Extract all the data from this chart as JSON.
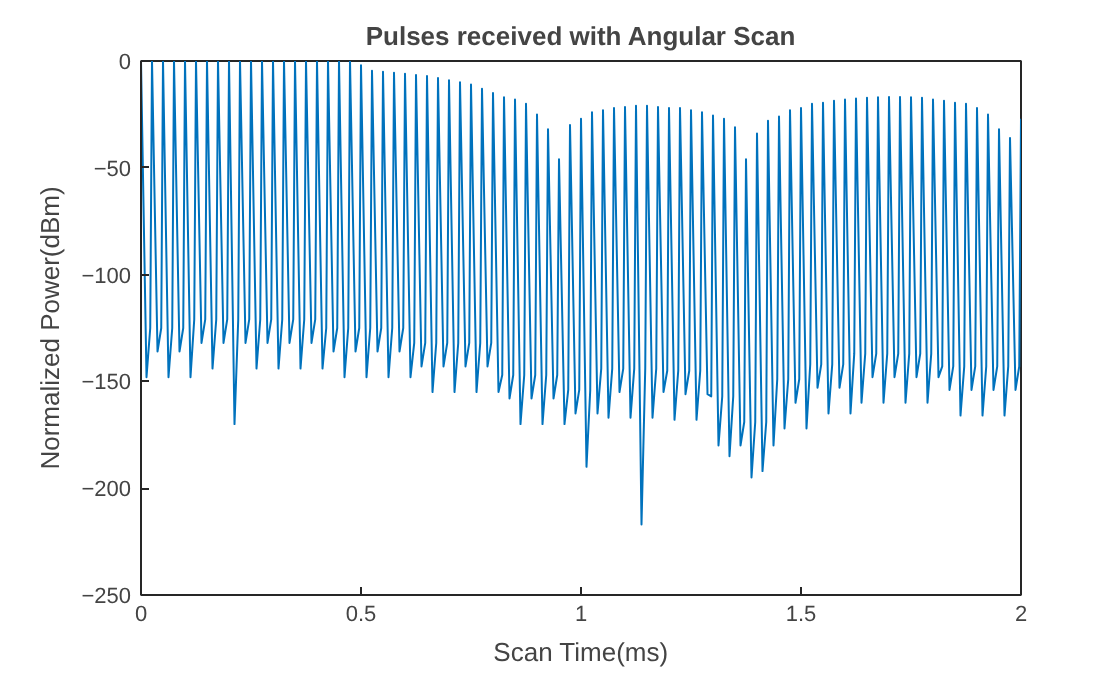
{
  "chart_data": {
    "type": "line",
    "title": "Pulses received with Angular Scan",
    "xlabel": "Scan Time(ms)",
    "ylabel": "Normalized Power(dBm)",
    "xlim": [
      0,
      2
    ],
    "ylim": [
      -250,
      0
    ],
    "xticks": [
      0,
      0.5,
      1,
      1.5,
      2
    ],
    "yticks": [
      -250,
      -200,
      -150,
      -100,
      -50,
      0
    ],
    "x": [
      0,
      0.0125,
      0.021,
      0.025,
      0.0375,
      0.046,
      0.05,
      0.0625,
      0.071,
      0.075,
      0.0875,
      0.096,
      0.1,
      0.1125,
      0.121,
      0.125,
      0.1375,
      0.146,
      0.15,
      0.1625,
      0.171,
      0.175,
      0.1875,
      0.196,
      0.2,
      0.2125,
      0.221,
      0.225,
      0.2375,
      0.246,
      0.25,
      0.2625,
      0.271,
      0.275,
      0.2875,
      0.296,
      0.3,
      0.3125,
      0.321,
      0.325,
      0.3375,
      0.346,
      0.35,
      0.3625,
      0.371,
      0.375,
      0.3875,
      0.396,
      0.4,
      0.4125,
      0.421,
      0.425,
      0.4375,
      0.446,
      0.45,
      0.4625,
      0.471,
      0.475,
      0.4875,
      0.496,
      0.5,
      0.5125,
      0.521,
      0.525,
      0.5375,
      0.546,
      0.55,
      0.5625,
      0.571,
      0.575,
      0.5875,
      0.596,
      0.6,
      0.6125,
      0.621,
      0.625,
      0.6375,
      0.646,
      0.65,
      0.6625,
      0.671,
      0.675,
      0.6875,
      0.696,
      0.7,
      0.7125,
      0.721,
      0.725,
      0.7375,
      0.746,
      0.75,
      0.7625,
      0.771,
      0.775,
      0.7875,
      0.796,
      0.8,
      0.8125,
      0.821,
      0.825,
      0.8375,
      0.846,
      0.85,
      0.8625,
      0.871,
      0.875,
      0.8875,
      0.896,
      0.9,
      0.9125,
      0.921,
      0.925,
      0.9375,
      0.946,
      0.95,
      0.9625,
      0.971,
      0.975,
      0.9875,
      0.996,
      1,
      1.0125,
      1.021,
      1.025,
      1.0375,
      1.046,
      1.05,
      1.0625,
      1.071,
      1.075,
      1.0875,
      1.096,
      1.1,
      1.1125,
      1.121,
      1.125,
      1.1375,
      1.146,
      1.15,
      1.1625,
      1.171,
      1.175,
      1.1875,
      1.196,
      1.2,
      1.2125,
      1.221,
      1.225,
      1.2375,
      1.246,
      1.25,
      1.2625,
      1.271,
      1.275,
      1.2875,
      1.296,
      1.3,
      1.3125,
      1.321,
      1.325,
      1.3375,
      1.346,
      1.35,
      1.3625,
      1.371,
      1.375,
      1.3875,
      1.396,
      1.4,
      1.4125,
      1.421,
      1.425,
      1.4375,
      1.446,
      1.45,
      1.4625,
      1.471,
      1.475,
      1.4875,
      1.496,
      1.5,
      1.5125,
      1.521,
      1.525,
      1.5375,
      1.546,
      1.55,
      1.5625,
      1.571,
      1.575,
      1.5875,
      1.596,
      1.6,
      1.6125,
      1.621,
      1.625,
      1.6375,
      1.646,
      1.65,
      1.6625,
      1.671,
      1.675,
      1.6875,
      1.696,
      1.7,
      1.7125,
      1.721,
      1.725,
      1.7375,
      1.746,
      1.75,
      1.7625,
      1.771,
      1.775,
      1.7875,
      1.796,
      1.8,
      1.8125,
      1.821,
      1.825,
      1.8375,
      1.846,
      1.85,
      1.8625,
      1.871,
      1.875,
      1.8875,
      1.896,
      1.9,
      1.9125,
      1.921,
      1.925,
      1.9375,
      1.946,
      1.95,
      1.9625,
      1.971,
      1.975,
      1.9875,
      1.996,
      2
    ],
    "series": [
      {
        "color": "#0072bd",
        "values": [
          0,
          -148,
          -125,
          0,
          -136,
          -125,
          0,
          -148,
          -125,
          0,
          -136,
          -125,
          0,
          -148,
          -121,
          0,
          -132,
          -121,
          0,
          -144,
          -121,
          0,
          -132,
          -121,
          0,
          -170,
          -121,
          0,
          -132,
          -121,
          0,
          -144,
          -121,
          0,
          -132,
          -121,
          0,
          -144,
          -121,
          0,
          -132,
          -121,
          0,
          -144,
          -121,
          0,
          -132,
          -121,
          0,
          -144,
          -125,
          0,
          -136,
          -125,
          0,
          -148,
          -125,
          0,
          -136,
          -125,
          -2,
          -148,
          -125,
          -4.6,
          -136,
          -125,
          -5,
          -148,
          -125,
          -5.5,
          -136,
          -125,
          -6,
          -148,
          -132,
          -6.5,
          -143,
          -132,
          -7,
          -155,
          -132,
          -8,
          -143,
          -132,
          -9,
          -155,
          -132,
          -10,
          -143,
          -132,
          -11,
          -155,
          -132,
          -13,
          -143,
          -132,
          -15,
          -155,
          -147,
          -17,
          -158,
          -147,
          -18,
          -170,
          -147,
          -20,
          -158,
          -147,
          -25,
          -170,
          -147,
          -32,
          -158,
          -147,
          -46,
          -170,
          -154,
          -30,
          -165,
          -154,
          -27,
          -190,
          -154,
          -24,
          -165,
          -144,
          -23,
          -167,
          -144,
          -22,
          -155,
          -144,
          -21.5,
          -167,
          -144,
          -21,
          -217,
          -144,
          -21,
          -167,
          -144,
          -21.5,
          -155,
          -145,
          -22,
          -168,
          -145,
          -22,
          -156,
          -145,
          -23,
          -168,
          -145,
          -24,
          -156,
          -157,
          -25.5,
          -180,
          -157,
          -27,
          -185,
          -157,
          -31,
          -180,
          -169,
          -46,
          -195,
          -169,
          -34,
          -192,
          -169,
          -28,
          -180,
          -149,
          -26,
          -172,
          -149,
          -23,
          -160,
          -149,
          -22,
          -172,
          -142,
          -20,
          -153,
          -142,
          -19.5,
          -165,
          -142,
          -18.6,
          -153,
          -142,
          -18,
          -165,
          -137,
          -17.6,
          -160,
          -137,
          -17.2,
          -148,
          -137,
          -17,
          -160,
          -137,
          -16.8,
          -148,
          -137,
          -16.8,
          -160,
          -137,
          -17,
          -148,
          -137,
          -17.2,
          -160,
          -137,
          -18,
          -148,
          -143,
          -18.6,
          -154,
          -143,
          -19.5,
          -166,
          -143,
          -20,
          -154,
          -143,
          -22,
          -166,
          -143,
          -25,
          -154,
          -143,
          -32,
          -166,
          -143,
          -36,
          -154,
          -143,
          -27
        ]
      }
    ]
  }
}
